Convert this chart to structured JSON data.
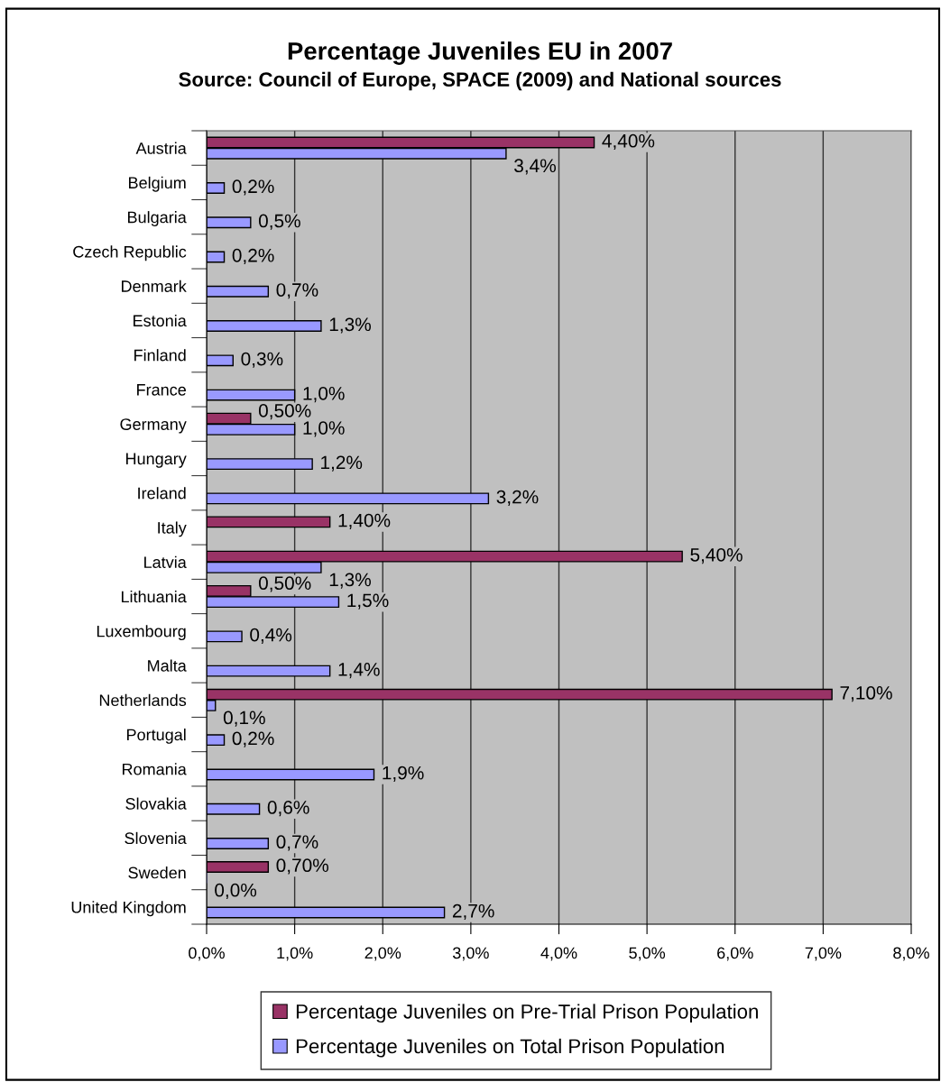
{
  "chart_data": {
    "type": "bar",
    "orientation": "horizontal",
    "title": "Percentage Juveniles EU in 2007",
    "subtitle": "Source: Council of Europe, SPACE (2009) and National sources",
    "categories": [
      "Austria",
      "Belgium",
      "Bulgaria",
      "Czech Republic",
      "Denmark",
      "Estonia",
      "Finland",
      "France",
      "Germany",
      "Hungary",
      "Ireland",
      "Italy",
      "Latvia",
      "Lithuania",
      "Luxembourg",
      "Malta",
      "Netherlands",
      "Portugal",
      "Romania",
      "Slovakia",
      "Slovenia",
      "Sweden",
      "United Kingdom"
    ],
    "series": [
      {
        "name": "Percentage Juveniles on Pre-Trial Prison Population",
        "color": "#993366",
        "values": [
          4.4,
          null,
          null,
          null,
          null,
          null,
          null,
          null,
          0.5,
          null,
          null,
          1.4,
          5.4,
          0.5,
          null,
          null,
          7.1,
          null,
          null,
          null,
          null,
          0.7,
          null
        ],
        "value_labels": [
          "4,40%",
          null,
          null,
          null,
          null,
          null,
          null,
          null,
          "0,50%",
          null,
          null,
          "1,40%",
          "5,40%",
          "0,50%",
          null,
          null,
          "7,10%",
          null,
          null,
          null,
          null,
          "0,70%",
          null
        ]
      },
      {
        "name": "Percentage Juveniles on Total Prison Population",
        "color": "#9999ff",
        "values": [
          3.4,
          0.2,
          0.5,
          0.2,
          0.7,
          1.3,
          0.3,
          1.0,
          1.0,
          1.2,
          3.2,
          null,
          1.3,
          1.5,
          0.4,
          1.4,
          0.1,
          0.2,
          1.9,
          0.6,
          0.7,
          0.0,
          2.7
        ],
        "value_labels": [
          "3,4%",
          "0,2%",
          "0,5%",
          "0,2%",
          "0,7%",
          "1,3%",
          "0,3%",
          "1,0%",
          "1,0%",
          "1,2%",
          "3,2%",
          null,
          "1,3%",
          "1,5%",
          "0,4%",
          "1,4%",
          "0,1%",
          "0,2%",
          "1,9%",
          "0,6%",
          "0,7%",
          "0,0%",
          "2,7%"
        ]
      }
    ],
    "xlim": [
      0,
      8
    ],
    "xticks": [
      {
        "value": 0,
        "label": "0,0%"
      },
      {
        "value": 1,
        "label": "1,0%"
      },
      {
        "value": 2,
        "label": "2,0%"
      },
      {
        "value": 3,
        "label": "3,0%"
      },
      {
        "value": 4,
        "label": "4,0%"
      },
      {
        "value": 5,
        "label": "5,0%"
      },
      {
        "value": 6,
        "label": "6,0%"
      },
      {
        "value": 7,
        "label": "7,0%"
      },
      {
        "value": 8,
        "label": "8,0%"
      }
    ],
    "grid": "x",
    "legend": "bottom"
  }
}
